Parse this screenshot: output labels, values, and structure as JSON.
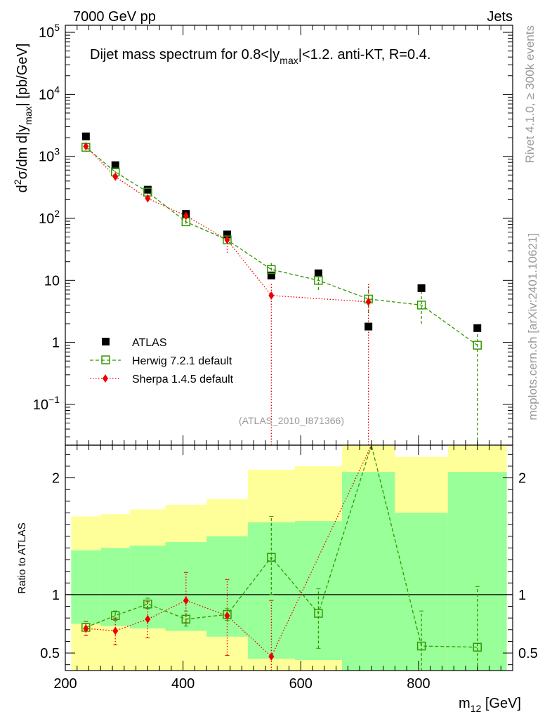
{
  "header": {
    "left": "7000 GeV pp",
    "right": "Jets"
  },
  "side_text": {
    "rivet": "Rivet 4.1.0, ≥ 300k events",
    "mcplots": "mcplots.cern.ch [arXiv:2401.10621]"
  },
  "colors": {
    "atlas": "#000000",
    "herwig": "#339900",
    "sherpa": "#ee0000",
    "band_inner": "#99ff99",
    "band_outer": "#ffff99"
  },
  "chart_data": [
    {
      "type": "scatter",
      "role": "main",
      "title_parts": {
        "pre": "Dijet mass spectrum for 0.8<|y",
        "sub": "max",
        "post": "|<1.2.  anti-KT, R=0.4."
      },
      "ylabel_parts": {
        "d2": "d",
        "sup2": "2",
        "mid": "σ/dm d|y",
        "sub": "max",
        "end": "| [pb/GeV]"
      },
      "yscale": "log",
      "ylim": [
        0.022,
        130000
      ],
      "xlim": [
        200,
        960
      ],
      "y_ticks": [
        {
          "v": 100000,
          "base": "10",
          "sup": "5"
        },
        {
          "v": 10000,
          "base": "10",
          "sup": "4"
        },
        {
          "v": 1000,
          "base": "10",
          "sup": "3"
        },
        {
          "v": 100,
          "base": "10",
          "sup": "2"
        },
        {
          "v": 10,
          "base": "10",
          "sup": ""
        },
        {
          "v": 1,
          "base": "1",
          "sup": ""
        },
        {
          "v": 0.1,
          "base": "10",
          "sup": "−1"
        }
      ],
      "watermark": "(ATLAS_2010_I871366)",
      "legend": {
        "placement": "lower-left",
        "entries": [
          "ATLAS",
          "Herwig 7.2.1 default",
          "Sherpa 1.4.5 default"
        ]
      },
      "series": [
        {
          "name": "ATLAS",
          "x": [
            235,
            285,
            340,
            405,
            475,
            550,
            630,
            715,
            805,
            900
          ],
          "y": [
            2100,
            720,
            290,
            118,
            55,
            12,
            13,
            1.8,
            7.5,
            1.7
          ]
        },
        {
          "name": "Herwig 7.2.1 default",
          "x": [
            235,
            285,
            340,
            405,
            475,
            550,
            630,
            715,
            805,
            900
          ],
          "y": [
            1400,
            560,
            265,
            88,
            45,
            15,
            10,
            5,
            4,
            0.9
          ],
          "err_lo": [
            1300,
            520,
            250,
            82,
            40,
            12,
            7,
            3,
            2,
            0.02
          ],
          "err_hi": [
            1500,
            600,
            285,
            95,
            50,
            19,
            13,
            8,
            6.5,
            1.6
          ]
        },
        {
          "name": "Sherpa 1.4.5 default",
          "x": [
            235,
            285,
            340,
            405,
            475,
            550,
            715
          ],
          "y": [
            1450,
            470,
            210,
            110,
            45,
            5.7,
            4.5
          ],
          "err_lo": [
            1300,
            420,
            190,
            90,
            28,
            0.02,
            0.02
          ],
          "err_hi": [
            1550,
            530,
            240,
            135,
            58,
            9,
            9
          ]
        }
      ]
    },
    {
      "type": "line",
      "role": "ratio",
      "ylabel": "Ratio to ATLAS",
      "xlabel_parts": {
        "base": "m",
        "sub": "12",
        "unit": " [GeV]"
      },
      "ylim": [
        0.35,
        2.28
      ],
      "xlim": [
        200,
        960
      ],
      "y_ticks": [
        "0.5",
        "1",
        "2"
      ],
      "x_ticks": [
        "200",
        "400",
        "600",
        "800"
      ],
      "reference_line": 1,
      "bands": [
        {
          "x0": 210,
          "x1": 260,
          "inner": [
            0.75,
            1.38
          ],
          "outer": [
            0.35,
            1.67
          ]
        },
        {
          "x0": 260,
          "x1": 310,
          "inner": [
            0.73,
            1.4
          ],
          "outer": [
            0.35,
            1.69
          ]
        },
        {
          "x0": 310,
          "x1": 370,
          "inner": [
            0.71,
            1.42
          ],
          "outer": [
            0.35,
            1.73
          ]
        },
        {
          "x0": 370,
          "x1": 440,
          "inner": [
            0.69,
            1.45
          ],
          "outer": [
            0.35,
            1.77
          ]
        },
        {
          "x0": 440,
          "x1": 510,
          "inner": [
            0.64,
            1.5
          ],
          "outer": [
            0.35,
            1.82
          ]
        },
        {
          "x0": 510,
          "x1": 590,
          "inner": [
            0.45,
            1.62
          ],
          "outer": [
            0.35,
            2.07
          ]
        },
        {
          "x0": 590,
          "x1": 670,
          "inner": [
            0.44,
            1.63
          ],
          "outer": [
            0.35,
            2.1
          ]
        },
        {
          "x0": 670,
          "x1": 760,
          "inner": [
            0.35,
            2.05
          ],
          "outer": [
            0.35,
            2.28
          ]
        },
        {
          "x0": 760,
          "x1": 850,
          "inner": [
            0.35,
            1.7
          ],
          "outer": [
            0.35,
            2.18
          ]
        },
        {
          "x0": 850,
          "x1": 950,
          "inner": [
            0.35,
            2.05
          ],
          "outer": [
            0.35,
            2.28
          ]
        }
      ],
      "series": [
        {
          "name": "Herwig 7.2.1 default",
          "x": [
            235,
            285,
            340,
            405,
            475,
            550,
            630,
            805,
            900
          ],
          "y": [
            0.72,
            0.82,
            0.92,
            0.79,
            0.83,
            1.32,
            0.84,
            0.56,
            0.55
          ],
          "err_lo": [
            0.69,
            0.78,
            0.88,
            0.73,
            0.78,
            1.0,
            0.54,
            0.35,
            0.35
          ],
          "err_hi": [
            0.75,
            0.86,
            0.97,
            0.86,
            0.88,
            1.67,
            1.05,
            0.86,
            1.07
          ],
          "line_extra": {
            "x": 720,
            "y": 2.3
          }
        },
        {
          "name": "Sherpa 1.4.5 default",
          "x": [
            235,
            285,
            340,
            405,
            475,
            550,
            720
          ],
          "y": [
            0.71,
            0.69,
            0.79,
            0.95,
            0.82,
            0.47,
            2.3
          ],
          "err_lo": [
            0.65,
            0.57,
            0.63,
            0.76,
            0.48,
            0.35,
            2.2
          ],
          "err_hi": [
            0.77,
            0.8,
            0.94,
            1.19,
            1.13,
            0.95,
            2.28
          ]
        }
      ]
    }
  ]
}
